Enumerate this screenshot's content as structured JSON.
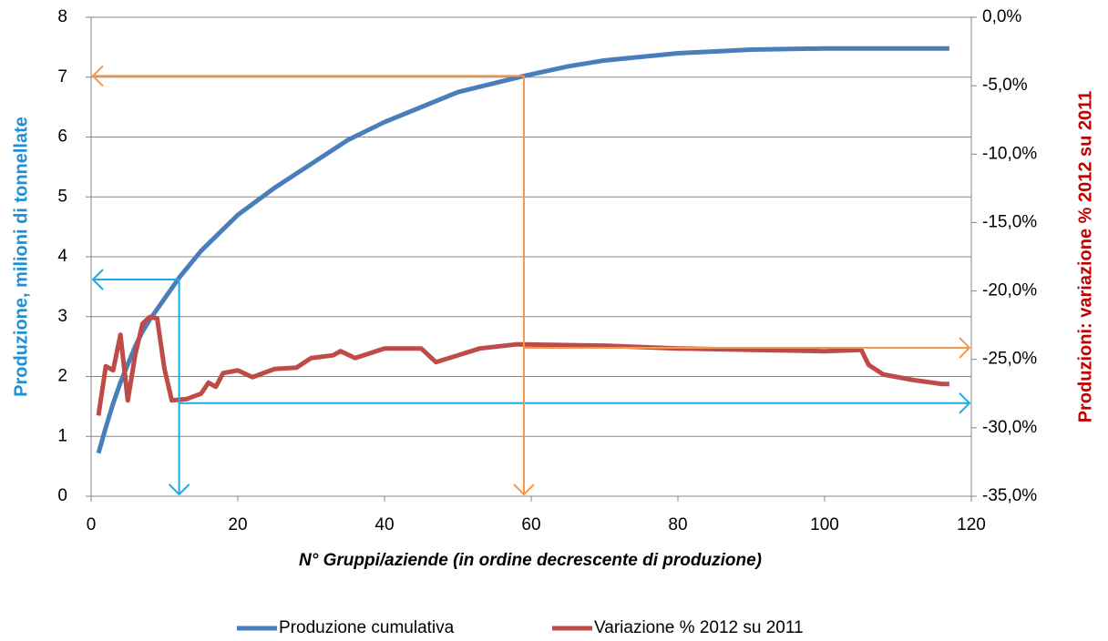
{
  "chart_data": {
    "type": "line",
    "xlabel": "N° Gruppi/aziende (in ordine decrescente di produzione)",
    "ylabel": "Produzione, milioni di tonnellate",
    "y2label": "Produzioni: variazione % 2012 su 2011",
    "xlim": [
      0,
      120
    ],
    "xticks": [
      0,
      20,
      40,
      60,
      80,
      100,
      120
    ],
    "ylim": [
      0,
      8
    ],
    "yticks": [
      0,
      1,
      2,
      3,
      4,
      5,
      6,
      7,
      8
    ],
    "y2lim": [
      -35,
      0
    ],
    "y2ticks": [
      {
        "value": 0,
        "label": "0,0%"
      },
      {
        "value": -5,
        "label": "-5,0%"
      },
      {
        "value": -10,
        "label": "-10,0%"
      },
      {
        "value": -15,
        "label": "-15,0%"
      },
      {
        "value": -20,
        "label": "-20,0%"
      },
      {
        "value": -25,
        "label": "-25,0%"
      },
      {
        "value": -30,
        "label": "-30,0%"
      },
      {
        "value": -35,
        "label": "-35,0%"
      }
    ],
    "grid": true,
    "legend": "bottom",
    "series": [
      {
        "name": "Produzione cumulativa",
        "color": "#4a7ebb",
        "x": [
          1,
          2,
          3,
          4,
          5,
          6,
          7,
          8,
          10,
          12,
          15,
          20,
          25,
          30,
          35,
          40,
          45,
          50,
          55,
          59,
          65,
          70,
          80,
          90,
          100,
          110,
          117
        ],
        "values": [
          0.72,
          1.15,
          1.55,
          1.9,
          2.2,
          2.5,
          2.75,
          2.95,
          3.3,
          3.65,
          4.1,
          4.7,
          5.15,
          5.55,
          5.95,
          6.25,
          6.5,
          6.75,
          6.9,
          7.02,
          7.18,
          7.28,
          7.4,
          7.46,
          7.48,
          7.48,
          7.48
        ]
      },
      {
        "name": "Variazione % 2012 su 2011",
        "color": "#be4b48",
        "axis": "y2",
        "x": [
          1,
          2,
          3,
          4,
          5,
          6,
          7,
          8,
          9,
          10,
          11,
          13,
          15,
          16,
          17,
          18,
          20,
          22,
          25,
          28,
          30,
          33,
          34,
          36,
          40,
          45,
          47,
          50,
          53,
          58,
          70,
          80,
          90,
          100,
          105,
          106,
          108,
          112,
          116,
          117
        ],
        "values": [
          -29.1,
          -25.5,
          -25.8,
          -23.2,
          -28.0,
          -24.7,
          -22.4,
          -21.9,
          -22.0,
          -25.7,
          -28.0,
          -27.9,
          -27.5,
          -26.7,
          -27.0,
          -26.0,
          -25.8,
          -26.3,
          -25.7,
          -25.6,
          -24.9,
          -24.7,
          -24.4,
          -24.9,
          -24.2,
          -24.2,
          -25.2,
          -24.7,
          -24.2,
          -23.9,
          -24.0,
          -24.2,
          -24.3,
          -24.4,
          -24.3,
          -25.4,
          -26.1,
          -26.5,
          -26.8,
          -26.8
        ]
      }
    ],
    "guides": [
      {
        "color": "#1eaae7",
        "x": 12,
        "y": 3.62,
        "y2": -28.2
      },
      {
        "color": "#f79646",
        "x": 59,
        "y": 7.02,
        "y2": -24.15
      }
    ]
  }
}
